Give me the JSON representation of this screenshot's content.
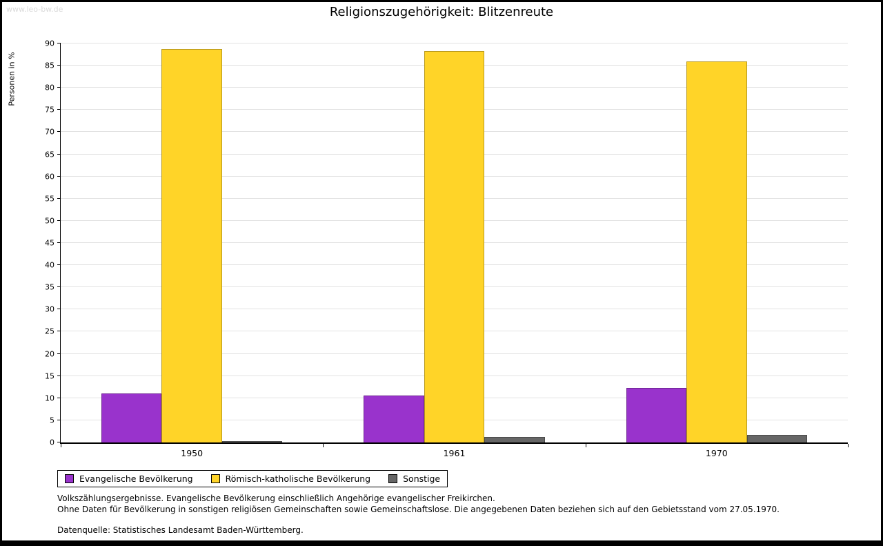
{
  "page": {
    "watermark": "www.leo-bw.de",
    "title": "Religionszugehörigkeit: Blitzenreute"
  },
  "chart_data": {
    "type": "bar",
    "title": "Religionszugehörigkeit: Blitzenreute",
    "xlabel": "",
    "ylabel": "Personen in %",
    "ylim": [
      0,
      90
    ],
    "ytick_step": 5,
    "grid": true,
    "legend_position": "bottom-left",
    "categories": [
      "1950",
      "1961",
      "1970"
    ],
    "series": [
      {
        "name": "Evangelische Bevölkerung",
        "color": "#9933cc",
        "values": [
          11.0,
          10.6,
          12.3
        ]
      },
      {
        "name": "Römisch-katholische Bevölkerung",
        "color": "#ffd428",
        "values": [
          88.8,
          88.3,
          86.0
        ]
      },
      {
        "name": "Sonstige",
        "color": "#666666",
        "values": [
          0.3,
          1.2,
          1.7
        ]
      }
    ]
  },
  "footnotes": {
    "line1": "Volkszählungsergebnisse. Evangelische Bevölkerung einschließlich Angehörige evangelischer Freikirchen.",
    "line2": "Ohne Daten für Bevölkerung in sonstigen religiösen Gemeinschaften sowie Gemeinschaftslose. Die angegebenen Daten beziehen sich auf den Gebietsstand vom 27.05.1970.",
    "line3": "Datenquelle: Statistisches Landesamt Baden-Württemberg."
  }
}
